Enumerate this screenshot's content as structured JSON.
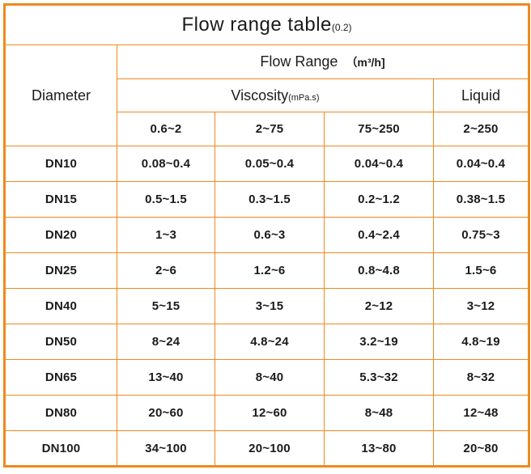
{
  "colors": {
    "border": "#EE8A1E",
    "text": "#1b1b1b",
    "background": "#ffffff"
  },
  "table": {
    "title": "Flow range table",
    "title_note": "(0.2)",
    "header": {
      "diameter": "Diameter",
      "flow_range": "Flow Range",
      "flow_range_unit": "（m³/h]",
      "viscosity": "Viscosity",
      "viscosity_unit": "(mPa.s)",
      "liquid": "Liquid",
      "viscosity_columns": [
        "0.6~2",
        "2~75",
        "75~250"
      ],
      "liquid_column": "2~250"
    },
    "rows": [
      {
        "diameter": "DN10",
        "values": [
          "0.08~0.4",
          "0.05~0.4",
          "0.04~0.4",
          "0.04~0.4"
        ]
      },
      {
        "diameter": "DN15",
        "values": [
          "0.5~1.5",
          "0.3~1.5",
          "0.2~1.2",
          "0.38~1.5"
        ]
      },
      {
        "diameter": "DN20",
        "values": [
          "1~3",
          "0.6~3",
          "0.4~2.4",
          "0.75~3"
        ]
      },
      {
        "diameter": "DN25",
        "values": [
          "2~6",
          "1.2~6",
          "0.8~4.8",
          "1.5~6"
        ]
      },
      {
        "diameter": "DN40",
        "values": [
          "5~15",
          "3~15",
          "2~12",
          "3~12"
        ]
      },
      {
        "diameter": "DN50",
        "values": [
          "8~24",
          "4.8~24",
          "3.2~19",
          "4.8~19"
        ]
      },
      {
        "diameter": "DN65",
        "values": [
          "13~40",
          "8~40",
          "5.3~32",
          "8~32"
        ]
      },
      {
        "diameter": "DN80",
        "values": [
          "20~60",
          "12~60",
          "8~48",
          "12~48"
        ]
      },
      {
        "diameter": "DN100",
        "values": [
          "34~100",
          "20~100",
          "13~80",
          "20~80"
        ]
      }
    ]
  }
}
